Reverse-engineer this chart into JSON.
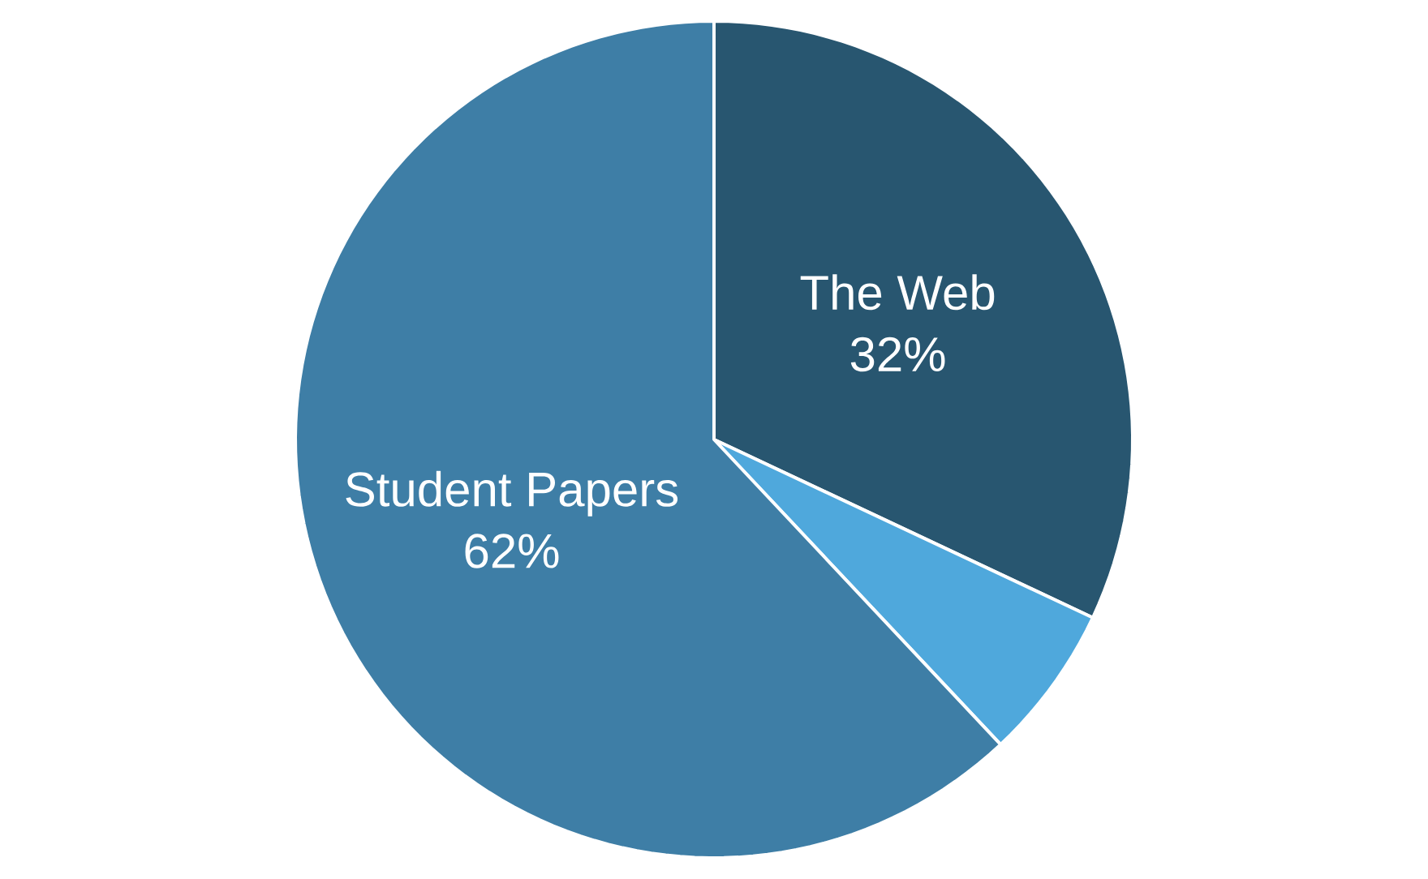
{
  "chart_data": {
    "type": "pie",
    "categories": [
      "The Web",
      null,
      "Student Papers"
    ],
    "values": [
      32,
      6,
      62
    ],
    "colors": [
      "#285670",
      "#4fa8dc",
      "#3e7ea6"
    ],
    "value_labels": [
      "32%",
      null,
      "62%"
    ]
  }
}
